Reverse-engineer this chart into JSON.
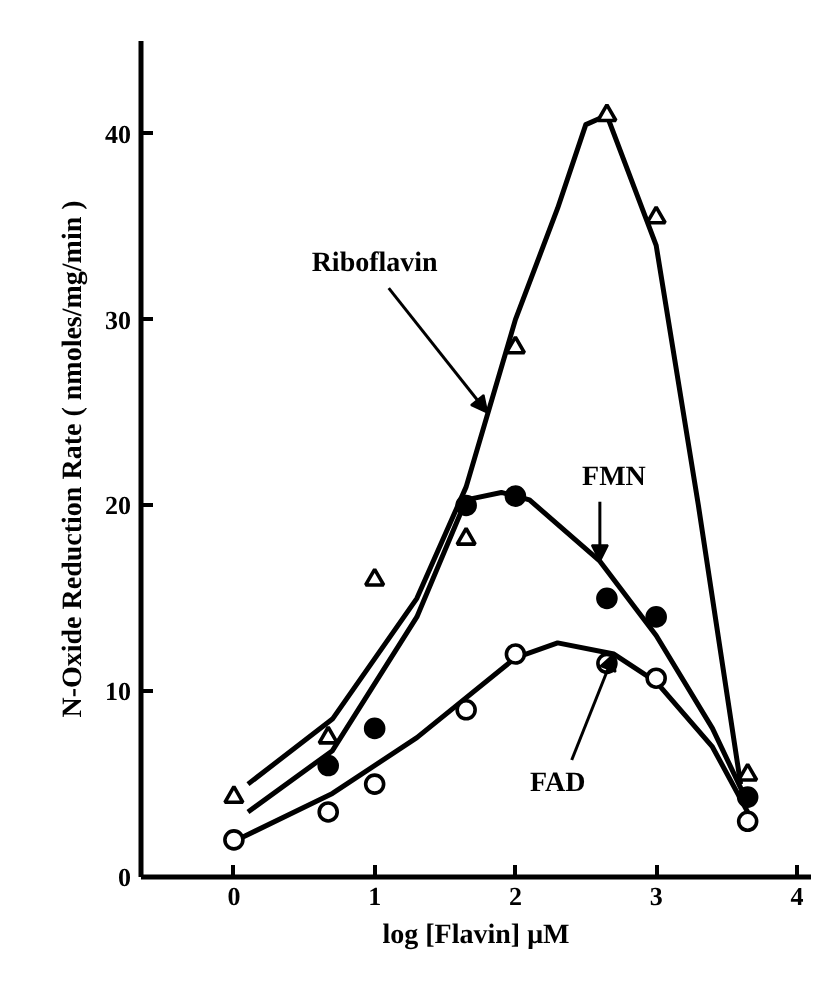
{
  "chart_data": {
    "type": "scatter",
    "xlabel": "log [Flavin] μM",
    "ylabel": "N-Oxide Reduction Rate ( nmoles/mg/min )",
    "xlim": [
      -0.66,
      4.1
    ],
    "ylim": [
      0,
      45
    ],
    "xticks": [
      0,
      1,
      2,
      3,
      4
    ],
    "yticks": [
      0,
      10,
      20,
      30,
      40
    ],
    "grid": false,
    "series": [
      {
        "marker": "triangle",
        "color": "#ffffff",
        "x": [
          0,
          0.67,
          1,
          1.65,
          2,
          2.65,
          3,
          3.65
        ],
        "values": [
          4.3,
          7.5,
          16,
          18.2,
          28.5,
          41,
          35.5,
          5.5
        ]
      },
      {
        "marker": "circle",
        "color": "#000000",
        "x": [
          0.67,
          1,
          1.65,
          2,
          2.65,
          3,
          3.65
        ],
        "values": [
          6,
          8,
          20,
          20.5,
          15,
          14,
          4.3
        ]
      },
      {
        "marker": "circle",
        "color": "#ffffff",
        "x": [
          0,
          0.67,
          1,
          1.65,
          2,
          2.65,
          3,
          3.65
        ],
        "values": [
          2,
          3.5,
          5,
          9,
          12,
          11.5,
          10.7,
          3
        ]
      },
      {
        "type": "line",
        "color": "#000000",
        "x": [
          0.1,
          0.7,
          1.3,
          1.65,
          2,
          2.3,
          2.5,
          2.65,
          3,
          3.3,
          3.6
        ],
        "values": [
          5,
          8.5,
          15,
          21,
          30,
          36,
          40.5,
          41,
          34,
          20,
          5
        ]
      },
      {
        "type": "line",
        "color": "#000000",
        "x": [
          0.1,
          0.7,
          1.3,
          1.65,
          1.9,
          2.1,
          2.6,
          3,
          3.4,
          3.65
        ],
        "values": [
          3.5,
          6.8,
          14,
          20.3,
          20.7,
          20.3,
          17,
          13,
          8,
          4
        ]
      },
      {
        "type": "line",
        "color": "#000000",
        "x": [
          0.05,
          0.7,
          1.3,
          2,
          2.3,
          2.7,
          3,
          3.4,
          3.65
        ],
        "values": [
          2.1,
          4.5,
          7.5,
          11.8,
          12.6,
          12,
          10.5,
          7,
          3.5
        ]
      }
    ],
    "annotations": [
      {
        "text": "Riboflavin",
        "x": 1.8,
        "y": 25
      },
      {
        "text": "FMN",
        "x": 2.6,
        "y": 17
      },
      {
        "text": "FAD",
        "x": 2.7,
        "y": 12
      }
    ]
  }
}
